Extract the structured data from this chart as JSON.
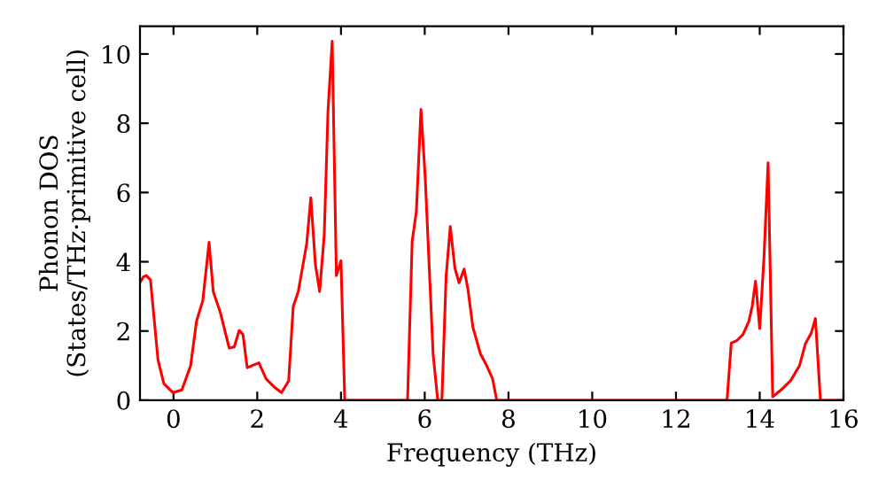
{
  "chart_data": {
    "type": "line",
    "xlabel": "Frequency (THz)",
    "ylabel": "Phonon DOS\n(States/THz·primitive cell)",
    "series": [
      {
        "color": "#ff0000",
        "x": [
          -0.8,
          -0.72,
          -0.65,
          -0.55,
          -0.37,
          -0.23,
          -0.01,
          0.2,
          0.41,
          0.55,
          0.7,
          0.85,
          0.95,
          1.12,
          1.33,
          1.45,
          1.57,
          1.66,
          1.76,
          2.04,
          2.21,
          2.4,
          2.58,
          2.75,
          2.86,
          2.98,
          3.18,
          3.28,
          3.39,
          3.49,
          3.6,
          3.69,
          3.79,
          3.89,
          4.0,
          4.09,
          5.59,
          5.7,
          5.8,
          5.91,
          6.01,
          6.2,
          6.31,
          6.41,
          6.51,
          6.61,
          6.72,
          6.82,
          6.94,
          7.03,
          7.15,
          7.33,
          7.48,
          7.62,
          7.72,
          13.22,
          13.32,
          13.46,
          13.6,
          13.74,
          13.82,
          13.9,
          14.0,
          14.1,
          14.2,
          14.31,
          14.52,
          14.74,
          14.95,
          15.09,
          15.23,
          15.33,
          15.45,
          16
        ],
        "values": [
          3.4,
          3.56,
          3.6,
          3.48,
          1.17,
          0.48,
          0.22,
          0.3,
          1.0,
          2.28,
          2.88,
          4.56,
          3.14,
          2.53,
          1.51,
          1.54,
          2.02,
          1.9,
          0.94,
          1.08,
          0.62,
          0.39,
          0.22,
          0.56,
          2.71,
          3.14,
          4.51,
          5.85,
          3.91,
          3.14,
          4.77,
          8.36,
          10.37,
          3.6,
          4.03,
          0,
          0,
          4.59,
          5.45,
          8.4,
          6.48,
          1.34,
          0,
          0,
          3.56,
          5.02,
          3.82,
          3.39,
          3.79,
          3.22,
          2.11,
          1.34,
          1.0,
          0.62,
          0,
          0,
          1.65,
          1.73,
          1.9,
          2.28,
          2.71,
          3.44,
          2.07,
          4.08,
          6.86,
          0.1,
          0.31,
          0.57,
          1.0,
          1.63,
          1.94,
          2.36,
          0,
          0
        ]
      }
    ],
    "xlim": [
      -0.8,
      16
    ],
    "ylim": [
      0,
      10.8
    ],
    "xticks": [
      0,
      2,
      4,
      6,
      8,
      10,
      12,
      14,
      16
    ],
    "yticks": [
      0,
      2,
      4,
      6,
      8,
      10
    ],
    "grid": false,
    "legend": false,
    "marker": "none",
    "line_style": "solid"
  }
}
